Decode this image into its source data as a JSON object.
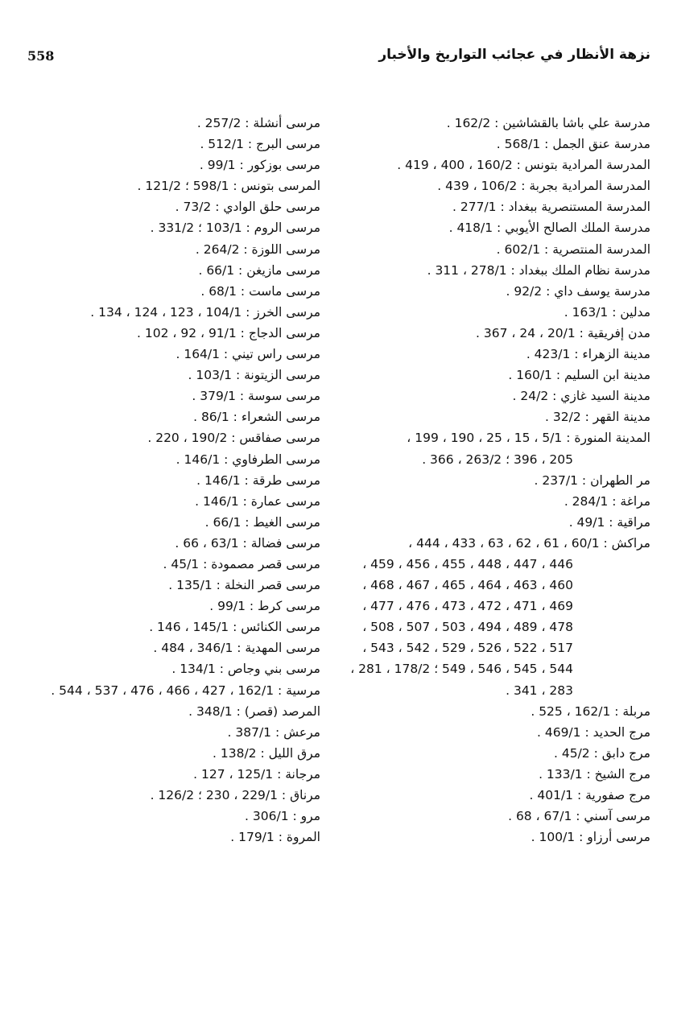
{
  "header": {
    "title": "نزهة الأنظار في عجائب التواريخ والأخبار",
    "page_number": "558"
  },
  "right_column": [
    {
      "text": "مدرسة علي باشا بالقشاشين : 162/2 .",
      "cont": false
    },
    {
      "text": "مدرسة عنق الجمل : 568/1 .",
      "cont": false
    },
    {
      "text": "المدرسة المرادية بتونس : 160/2 ، 400 ، 419 .",
      "cont": false
    },
    {
      "text": "المدرسة المرادية بجربة : 106/2 ، 439 .",
      "cont": false
    },
    {
      "text": "المدرسة المستنصرية ببغداد : 277/1 .",
      "cont": false
    },
    {
      "text": "مدرسة الملك الصالح الأيوبي : 418/1 .",
      "cont": false
    },
    {
      "text": "المدرسة المنتصرية : 602/1 .",
      "cont": false
    },
    {
      "text": "مدرسة نظام الملك ببغداد : 278/1 ، 311 .",
      "cont": false
    },
    {
      "text": "مدرسة يوسف داي : 92/2 .",
      "cont": false
    },
    {
      "text": "مدلين : 163/1 .",
      "cont": false
    },
    {
      "text": "مدن إفريقية : 20/1 ، 24 ، 367 .",
      "cont": false
    },
    {
      "text": "مدينة الزهراء : 423/1 .",
      "cont": false
    },
    {
      "text": "مدينة ابن السليم : 160/1 .",
      "cont": false
    },
    {
      "text": "مدينة السيد غازي : 24/2 .",
      "cont": false
    },
    {
      "text": "مدينة القهر : 32/2 .",
      "cont": false
    },
    {
      "text": "المدينة المنورة : 5/1 ، 15 ، 25 ، 190 ، 199 ،",
      "cont": false
    },
    {
      "text": "205 ، 396 ؛ 263/2 ، 366 .",
      "cont": true
    },
    {
      "text": "مر الطهران : 237/1 .",
      "cont": false
    },
    {
      "text": "مراغة : 284/1 .",
      "cont": false
    },
    {
      "text": "مراقية : 49/1 .",
      "cont": false
    },
    {
      "text": "مراكش : 60/1 ، 61 ، 62 ، 63 ، 433 ، 444 ،",
      "cont": false
    },
    {
      "text": "446 ، 447 ، 448 ، 455 ، 456 ، 459 ،",
      "cont": true
    },
    {
      "text": "460 ، 463 ، 464 ، 465 ، 467 ، 468 ،",
      "cont": true
    },
    {
      "text": "469 ، 471 ، 472 ، 473 ، 476 ، 477 ،",
      "cont": true
    },
    {
      "text": "478 ، 489 ، 494 ، 503 ، 507 ، 508 ،",
      "cont": true
    },
    {
      "text": "517 ، 522 ، 526 ، 529 ، 542 ، 543 ،",
      "cont": true
    },
    {
      "text": "544 ، 545 ، 546 ، 549 ؛ 178/2 ، 281 ،",
      "cont": true
    },
    {
      "text": "283 ، 341 .",
      "cont": true
    },
    {
      "text": "مربلة : 162/1 ، 525 .",
      "cont": false
    },
    {
      "text": "مرج الحديد : 469/1 .",
      "cont": false
    },
    {
      "text": "مرج دابق : 45/2 .",
      "cont": false
    },
    {
      "text": "مرج الشيخ : 133/1 .",
      "cont": false
    },
    {
      "text": "مرج صفورية : 401/1 .",
      "cont": false
    },
    {
      "text": "مرسى آسني : 67/1 ، 68 .",
      "cont": false
    },
    {
      "text": "مرسى أرزاو : 100/1 .",
      "cont": false
    }
  ],
  "left_column": [
    {
      "text": "مرسى أنشلة : 257/2 .",
      "cont": false
    },
    {
      "text": "مرسى البرج : 512/1 .",
      "cont": false
    },
    {
      "text": "مرسى بوزكور : 99/1 .",
      "cont": false
    },
    {
      "text": "المرسى بتونس : 598/1 ؛ 121/2 .",
      "cont": false
    },
    {
      "text": "مرسى حلق الوادي : 73/2 .",
      "cont": false
    },
    {
      "text": "مرسى الروم : 103/1 ؛ 331/2 .",
      "cont": false
    },
    {
      "text": "مرسى اللوزة : 264/2 .",
      "cont": false
    },
    {
      "text": "مرسى مازيغن : 66/1 .",
      "cont": false
    },
    {
      "text": "مرسى ماست : 68/1 .",
      "cont": false
    },
    {
      "text": "مرسى الخرز : 104/1 ، 123 ، 124 ، 134 .",
      "cont": false
    },
    {
      "text": "مرسى الدجاج : 91/1 ، 92 ، 102 .",
      "cont": false
    },
    {
      "text": "مرسى راس تيني : 164/1 .",
      "cont": false
    },
    {
      "text": "مرسى الزيتونة : 103/1 .",
      "cont": false
    },
    {
      "text": "مرسى سوسة : 379/1 .",
      "cont": false
    },
    {
      "text": "مرسى الشعراء : 86/1 .",
      "cont": false
    },
    {
      "text": "مرسى صفاقس : 190/2 ، 220 .",
      "cont": false
    },
    {
      "text": "مرسى الطرفاوي : 146/1 .",
      "cont": false
    },
    {
      "text": "مرسى طرقة : 146/1 .",
      "cont": false
    },
    {
      "text": "مرسى عمارة : 146/1 .",
      "cont": false
    },
    {
      "text": "مرسى الغيط : 66/1 .",
      "cont": false
    },
    {
      "text": "مرسى فضالة : 63/1 ، 66 .",
      "cont": false
    },
    {
      "text": "مرسى قصر مصمودة : 45/1 .",
      "cont": false
    },
    {
      "text": "مرسى قصر النخلة : 135/1 .",
      "cont": false
    },
    {
      "text": "مرسى كرط : 99/1 .",
      "cont": false
    },
    {
      "text": "مرسى الكنائس : 145/1 ، 146 .",
      "cont": false
    },
    {
      "text": "مرسى المهدية : 346/1 ، 484 .",
      "cont": false
    },
    {
      "text": "مرسى بني وجاص : 134/1 .",
      "cont": false
    },
    {
      "text": "مرسية : 162/1 ، 427 ، 466 ، 476 ، 537 ، 544 .",
      "cont": false
    },
    {
      "text": "المرصد (قصر) : 348/1 .",
      "cont": false
    },
    {
      "text": "مرعش : 387/1 .",
      "cont": false
    },
    {
      "text": "مرق الليل : 138/2 .",
      "cont": false
    },
    {
      "text": "مرجانة : 125/1 ، 127 .",
      "cont": false
    },
    {
      "text": "مرناق : 229/1 ، 230 ؛ 126/2 .",
      "cont": false
    },
    {
      "text": "مرو : 306/1 .",
      "cont": false
    },
    {
      "text": "المروة : 179/1 .",
      "cont": false
    }
  ]
}
